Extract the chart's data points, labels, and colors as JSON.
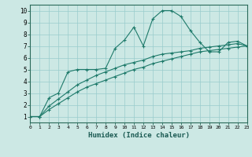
{
  "xlabel": "Humidex (Indice chaleur)",
  "background_color": "#cce8e4",
  "grid_color": "#99cccc",
  "line_color": "#1e7a6a",
  "xlim": [
    0,
    23
  ],
  "ylim": [
    0.5,
    10.5
  ],
  "xticks": [
    0,
    1,
    2,
    3,
    4,
    5,
    6,
    7,
    8,
    9,
    10,
    11,
    12,
    13,
    14,
    15,
    16,
    17,
    18,
    19,
    20,
    21,
    22,
    23
  ],
  "yticks": [
    1,
    2,
    3,
    4,
    5,
    6,
    7,
    8,
    9,
    10
  ],
  "line1_x": [
    0,
    1,
    2,
    3,
    4,
    5,
    6,
    7,
    8,
    9,
    10,
    11,
    12,
    13,
    14,
    15,
    16,
    17,
    18,
    19,
    20,
    21,
    22,
    23
  ],
  "line1_y": [
    1.0,
    1.0,
    2.6,
    3.0,
    4.8,
    5.0,
    5.0,
    5.0,
    5.1,
    6.8,
    7.5,
    8.6,
    7.0,
    9.3,
    10.0,
    10.0,
    9.5,
    8.3,
    7.3,
    6.5,
    6.5,
    7.3,
    7.4,
    7.0
  ],
  "line2_x": [
    0,
    1,
    2,
    3,
    4,
    5,
    6,
    7,
    8,
    9,
    10,
    11,
    12,
    13,
    14,
    15,
    16,
    17,
    18,
    19,
    20,
    21,
    22,
    23
  ],
  "line2_y": [
    1.0,
    1.0,
    1.9,
    2.5,
    3.1,
    3.7,
    4.1,
    4.5,
    4.8,
    5.1,
    5.4,
    5.6,
    5.8,
    6.1,
    6.3,
    6.4,
    6.5,
    6.6,
    6.8,
    6.9,
    7.0,
    7.1,
    7.2,
    7.0
  ],
  "line3_x": [
    0,
    1,
    2,
    3,
    4,
    5,
    6,
    7,
    8,
    9,
    10,
    11,
    12,
    13,
    14,
    15,
    16,
    17,
    18,
    19,
    20,
    21,
    22,
    23
  ],
  "line3_y": [
    1.0,
    1.0,
    1.6,
    2.1,
    2.6,
    3.1,
    3.5,
    3.8,
    4.1,
    4.4,
    4.7,
    5.0,
    5.2,
    5.5,
    5.7,
    5.9,
    6.1,
    6.3,
    6.5,
    6.6,
    6.7,
    6.8,
    6.9,
    7.0
  ]
}
